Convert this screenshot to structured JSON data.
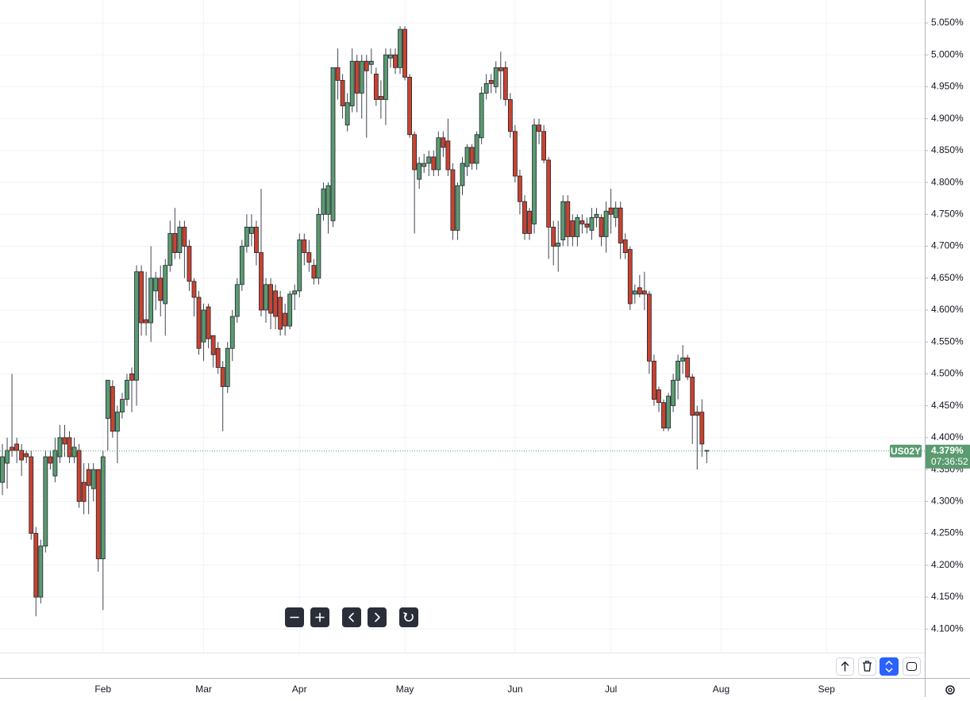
{
  "chart_data": {
    "type": "candlestick",
    "symbol": "US02Y",
    "last_price": 4.379,
    "last_label": "4.379%",
    "countdown": "07:36:52",
    "up_color": "#5a9b70",
    "down_color": "#c9432f",
    "grid": true,
    "ylim": [
      4.063,
      5.086
    ],
    "yticks": [
      {
        "value": 4.1,
        "label": "4.100%"
      },
      {
        "value": 4.15,
        "label": "4.150%"
      },
      {
        "value": 4.2,
        "label": "4.200%"
      },
      {
        "value": 4.25,
        "label": "4.250%"
      },
      {
        "value": 4.3,
        "label": "4.300%"
      },
      {
        "value": 4.35,
        "label": "4.350%"
      },
      {
        "value": 4.4,
        "label": "4.400%"
      },
      {
        "value": 4.45,
        "label": "4.450%"
      },
      {
        "value": 4.5,
        "label": "4.500%"
      },
      {
        "value": 4.55,
        "label": "4.550%"
      },
      {
        "value": 4.6,
        "label": "4.600%"
      },
      {
        "value": 4.65,
        "label": "4.650%"
      },
      {
        "value": 4.7,
        "label": "4.700%"
      },
      {
        "value": 4.75,
        "label": "4.750%"
      },
      {
        "value": 4.8,
        "label": "4.800%"
      },
      {
        "value": 4.85,
        "label": "4.850%"
      },
      {
        "value": 4.9,
        "label": "4.900%"
      },
      {
        "value": 4.95,
        "label": "4.950%"
      },
      {
        "value": 5.0,
        "label": "5.000%"
      },
      {
        "value": 5.05,
        "label": "5.050%"
      }
    ],
    "categories": [
      null,
      null,
      null,
      null,
      null,
      null,
      null,
      null,
      null,
      null,
      null,
      null,
      null,
      null,
      null,
      null,
      null,
      null,
      null,
      null,
      null,
      "Feb",
      null,
      null,
      null,
      null,
      null,
      null,
      null,
      null,
      null,
      null,
      null,
      null,
      null,
      null,
      null,
      null,
      null,
      null,
      null,
      null,
      "Mar",
      null,
      null,
      null,
      null,
      null,
      null,
      null,
      null,
      null,
      null,
      null,
      null,
      null,
      null,
      null,
      null,
      null,
      null,
      null,
      "Apr",
      null,
      null,
      null,
      null,
      null,
      null,
      null,
      null,
      null,
      null,
      null,
      null,
      null,
      null,
      null,
      null,
      null,
      null,
      null,
      null,
      null,
      "May",
      null,
      null,
      null,
      null,
      null,
      null,
      null,
      null,
      null,
      null,
      null,
      null,
      null,
      null,
      null,
      null,
      null,
      null,
      null,
      null,
      null,
      null,
      "Jun",
      null,
      null,
      null,
      null,
      null,
      null,
      null,
      null,
      null,
      null,
      null,
      null,
      null,
      null,
      null,
      null,
      null,
      null,
      null,
      "Jul",
      null,
      null,
      null,
      null,
      null,
      null,
      null,
      null,
      null,
      null,
      null,
      null,
      null,
      null,
      null,
      null,
      null,
      null,
      null,
      null,
      null,
      null,
      "Aug",
      null,
      null,
      null,
      null,
      null,
      null,
      null,
      null,
      null,
      null,
      null,
      null,
      null,
      null,
      null,
      null,
      null,
      null,
      null,
      null,
      null,
      "Sep",
      null,
      null,
      null,
      null,
      null,
      null,
      null,
      null,
      null,
      null,
      null,
      null,
      null,
      null,
      null,
      null,
      null,
      null,
      null,
      null
    ],
    "open": [
      4.33,
      4.36,
      4.385,
      4.39,
      4.38,
      4.375,
      4.37,
      4.25,
      4.15,
      4.23,
      4.37,
      4.34,
      4.37,
      4.4,
      4.4,
      4.37,
      4.38,
      4.33,
      4.35,
      4.32,
      4.35,
      4.21,
      4.43,
      4.48,
      4.41,
      4.44,
      4.46,
      4.5,
      4.49,
      4.66,
      4.585,
      4.58,
      4.63,
      4.65,
      4.61,
      4.67,
      4.72,
      4.69,
      4.73,
      4.7,
      4.645,
      4.62,
      4.55,
      4.605,
      4.56,
      4.54,
      4.51,
      4.48,
      4.54,
      4.59,
      4.64,
      4.7,
      4.72,
      4.73,
      4.69,
      4.6,
      4.64,
      4.63,
      4.62,
      4.595,
      4.575,
      4.625,
      4.63,
      4.71,
      4.69,
      4.67,
      4.65,
      4.75,
      4.75,
      4.74,
      4.98,
      4.96,
      4.89,
      4.92,
      4.99,
      4.94,
      4.99,
      4.985,
      4.97,
      4.935,
      4.93,
      4.995,
      5.0,
      4.98,
      5.04,
      4.965,
      4.875,
      4.805,
      4.825,
      4.83,
      4.84,
      4.82,
      4.87,
      4.865,
      4.82,
      4.725,
      4.795,
      4.825,
      4.855,
      4.83,
      4.87,
      4.94,
      4.96,
      4.95,
      4.98,
      4.98,
      4.93,
      4.88,
      4.81,
      4.77,
      4.755,
      4.735,
      4.89,
      4.88,
      4.835,
      4.73,
      4.7,
      4.71,
      4.77,
      4.74,
      4.715,
      4.74,
      4.735,
      4.725,
      4.745,
      4.745,
      4.715,
      4.76,
      4.745,
      4.76,
      4.71,
      4.695,
      4.625,
      4.635,
      4.63,
      4.625,
      4.52,
      4.475,
      4.455,
      4.415,
      4.45,
      4.49,
      4.52,
      4.525,
      4.495,
      4.44,
      4.44,
      4.38,
      null,
      null,
      null,
      null,
      null,
      null,
      null,
      null,
      null,
      null,
      null,
      null,
      null,
      null,
      null,
      null,
      null,
      null,
      null,
      null,
      null,
      null,
      null,
      null,
      null,
      null,
      null,
      null,
      null,
      null,
      null,
      null,
      null,
      null,
      null,
      null,
      null,
      null,
      null,
      null,
      null,
      null,
      null,
      null,
      null
    ],
    "high": [
      4.39,
      4.4,
      4.5,
      4.4,
      4.39,
      4.38,
      4.38,
      4.26,
      4.24,
      4.38,
      4.38,
      4.4,
      4.42,
      4.42,
      4.41,
      4.4,
      4.39,
      4.36,
      4.36,
      4.36,
      4.35,
      4.38,
      4.49,
      4.49,
      4.45,
      4.47,
      4.5,
      4.51,
      4.67,
      4.67,
      4.66,
      4.7,
      4.66,
      4.67,
      4.68,
      4.74,
      4.76,
      4.74,
      4.74,
      4.71,
      4.65,
      4.63,
      4.61,
      4.61,
      4.56,
      4.55,
      4.52,
      4.55,
      4.6,
      4.65,
      4.71,
      4.75,
      4.75,
      4.74,
      4.79,
      4.65,
      4.65,
      4.64,
      4.63,
      4.61,
      4.63,
      4.64,
      4.72,
      4.72,
      4.71,
      4.68,
      4.76,
      4.8,
      4.8,
      4.98,
      5.01,
      4.97,
      4.94,
      5.01,
      5.0,
      5.0,
      5.0,
      5.01,
      4.98,
      4.96,
      5.01,
      5.01,
      5.01,
      5.045,
      5.045,
      4.97,
      4.88,
      4.84,
      4.845,
      4.85,
      4.85,
      4.88,
      4.88,
      4.9,
      4.83,
      4.8,
      4.84,
      4.86,
      4.86,
      4.88,
      4.95,
      4.97,
      4.97,
      4.99,
      5.005,
      4.99,
      4.94,
      4.89,
      4.82,
      4.78,
      4.76,
      4.9,
      4.9,
      4.89,
      4.84,
      4.74,
      4.74,
      4.78,
      4.78,
      4.75,
      4.75,
      4.75,
      4.745,
      4.76,
      4.76,
      4.75,
      4.77,
      4.79,
      4.77,
      4.77,
      4.72,
      4.7,
      4.64,
      4.655,
      4.66,
      4.63,
      4.53,
      4.48,
      4.46,
      4.47,
      4.5,
      4.53,
      4.545,
      4.53,
      4.5,
      4.45,
      4.46,
      4.38,
      null,
      null,
      null,
      null,
      null,
      null,
      null,
      null,
      null,
      null,
      null,
      null,
      null,
      null,
      null,
      null,
      null,
      null,
      null,
      null,
      null,
      null,
      null,
      null,
      null,
      null,
      null,
      null,
      null,
      null,
      null,
      null,
      null,
      null,
      null,
      null,
      null,
      null,
      null,
      null,
      null,
      null,
      null,
      null,
      null
    ],
    "low": [
      4.31,
      4.32,
      4.37,
      4.36,
      4.34,
      4.36,
      4.24,
      4.12,
      4.14,
      4.22,
      4.35,
      4.33,
      4.36,
      4.37,
      4.36,
      4.36,
      4.29,
      4.28,
      4.28,
      4.3,
      4.19,
      4.13,
      4.38,
      4.4,
      4.36,
      4.43,
      4.45,
      4.44,
      4.45,
      4.56,
      4.56,
      4.55,
      4.6,
      4.59,
      4.56,
      4.66,
      4.68,
      4.68,
      4.65,
      4.63,
      4.59,
      4.53,
      4.52,
      4.54,
      4.51,
      4.5,
      4.41,
      4.47,
      4.52,
      4.58,
      4.63,
      4.69,
      4.7,
      4.67,
      4.59,
      4.58,
      4.57,
      4.57,
      4.56,
      4.56,
      4.57,
      4.6,
      4.62,
      4.67,
      4.66,
      4.64,
      4.64,
      4.74,
      4.72,
      4.73,
      4.93,
      4.9,
      4.88,
      4.91,
      4.91,
      4.9,
      4.87,
      4.97,
      4.92,
      4.9,
      4.89,
      4.98,
      4.97,
      4.97,
      4.96,
      4.87,
      4.72,
      4.79,
      4.815,
      4.81,
      4.81,
      4.81,
      4.84,
      4.81,
      4.71,
      4.71,
      4.78,
      4.81,
      4.82,
      4.82,
      4.86,
      4.93,
      4.94,
      4.94,
      4.93,
      4.92,
      4.87,
      4.8,
      4.75,
      4.71,
      4.71,
      4.72,
      4.86,
      4.83,
      4.68,
      4.67,
      4.66,
      4.7,
      4.7,
      4.7,
      4.7,
      4.72,
      4.72,
      4.71,
      4.73,
      4.7,
      4.69,
      4.72,
      4.73,
      4.68,
      4.68,
      4.6,
      4.61,
      4.62,
      4.6,
      4.5,
      4.45,
      4.44,
      4.41,
      4.41,
      4.44,
      4.46,
      4.5,
      4.49,
      4.39,
      4.35,
      4.37,
      4.36,
      null,
      null,
      null,
      null,
      null,
      null,
      null,
      null,
      null,
      null,
      null,
      null,
      null,
      null,
      null,
      null,
      null,
      null,
      null,
      null,
      null,
      null,
      null,
      null,
      null,
      null,
      null,
      null,
      null,
      null,
      null,
      null,
      null,
      null,
      null,
      null,
      null,
      null,
      null,
      null,
      null,
      null,
      null,
      null,
      null
    ],
    "close": [
      4.37,
      4.38,
      4.38,
      4.38,
      4.365,
      4.37,
      4.25,
      4.15,
      4.23,
      4.37,
      4.36,
      4.38,
      4.4,
      4.39,
      4.37,
      4.385,
      4.3,
      4.3,
      4.325,
      4.35,
      4.21,
      4.37,
      4.49,
      4.41,
      4.44,
      4.46,
      4.49,
      4.49,
      4.66,
      4.58,
      4.58,
      4.65,
      4.65,
      4.615,
      4.67,
      4.72,
      4.69,
      4.73,
      4.7,
      4.645,
      4.62,
      4.54,
      4.6,
      4.555,
      4.53,
      4.51,
      4.48,
      4.54,
      4.59,
      4.64,
      4.7,
      4.73,
      4.73,
      4.69,
      4.6,
      4.64,
      4.595,
      4.59,
      4.57,
      4.575,
      4.625,
      4.63,
      4.71,
      4.69,
      4.675,
      4.65,
      4.75,
      4.79,
      4.795,
      4.98,
      4.96,
      4.92,
      4.925,
      4.99,
      4.94,
      4.99,
      4.975,
      4.99,
      4.93,
      4.93,
      5.0,
      5.0,
      4.98,
      5.04,
      4.965,
      4.875,
      4.82,
      4.83,
      4.83,
      4.84,
      4.82,
      4.87,
      4.855,
      4.82,
      4.725,
      4.795,
      4.83,
      4.855,
      4.83,
      4.875,
      4.94,
      4.955,
      4.955,
      4.98,
      4.975,
      4.93,
      4.88,
      4.81,
      4.77,
      4.72,
      4.72,
      4.89,
      4.88,
      4.835,
      4.73,
      4.7,
      4.705,
      4.77,
      4.715,
      4.715,
      4.745,
      4.735,
      4.73,
      4.745,
      4.75,
      4.715,
      4.755,
      4.75,
      4.76,
      4.705,
      4.69,
      4.61,
      4.63,
      4.625,
      4.625,
      4.52,
      4.46,
      4.455,
      4.415,
      4.465,
      4.49,
      4.52,
      4.525,
      4.495,
      4.435,
      4.435,
      4.39,
      4.379,
      null,
      null,
      null,
      null,
      null,
      null,
      null,
      null,
      null,
      null,
      null,
      null,
      null,
      null,
      null,
      null,
      null,
      null,
      null,
      null,
      null,
      null,
      null,
      null,
      null,
      null,
      null,
      null,
      null,
      null,
      null,
      null,
      null,
      null,
      null,
      null,
      null,
      null,
      null,
      null,
      null,
      null,
      null,
      null,
      null
    ]
  }
}
